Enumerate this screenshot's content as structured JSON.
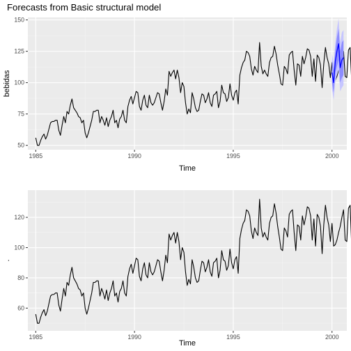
{
  "chart_data": [
    {
      "type": "line",
      "title": "Forecasts from Basic structural model",
      "xlabel": "Time",
      "ylabel": "bebidas",
      "xlim": [
        1984.6,
        2000.75
      ],
      "ylim": [
        46.5,
        152
      ],
      "x_ticks": [
        1985,
        1990,
        1995,
        2000
      ],
      "x_tick_labels": [
        "1985",
        "1990",
        "1995",
        "2000"
      ],
      "y_ticks": [
        50,
        75,
        100,
        125,
        150
      ],
      "y_tick_labels": [
        "50",
        "75",
        "100",
        "125",
        "150"
      ],
      "grid": true,
      "series": [
        {
          "x_start": 1985.0,
          "frequency": 12,
          "values": [
            56,
            50,
            50,
            54,
            57,
            59,
            55,
            58,
            63,
            68,
            69,
            69,
            70,
            70,
            62,
            58,
            66,
            73,
            68,
            77,
            75,
            82,
            87,
            80,
            78,
            76,
            73,
            72,
            68,
            70,
            60,
            56,
            60,
            65,
            70,
            77,
            77,
            78,
            78,
            68,
            73,
            70,
            66,
            72,
            65,
            70,
            73,
            78,
            68,
            70,
            64,
            71,
            73,
            78,
            70,
            68,
            81,
            86,
            89,
            83,
            88,
            93,
            92,
            81,
            78,
            86,
            90,
            82,
            80,
            90,
            84,
            82,
            84,
            88,
            92,
            91,
            84,
            78,
            85,
            95,
            90,
            109,
            105,
            108,
            110,
            103,
            110,
            104,
            92,
            100,
            97,
            84,
            75,
            79,
            76,
            92,
            87,
            80,
            77,
            78,
            85,
            91,
            90,
            84,
            87,
            92,
            84,
            81,
            90,
            91,
            93,
            80,
            85,
            98,
            92,
            91,
            85,
            88,
            99,
            90,
            86,
            92,
            94,
            83,
            106,
            112,
            116,
            118,
            125,
            124,
            121,
            111,
            106,
            113,
            110,
            108,
            132,
            113,
            107,
            110,
            107,
            105,
            116,
            120,
            121,
            129,
            123,
            114,
            107,
            99,
            98,
            113,
            111,
            107,
            122,
            124,
            125,
            110,
            98,
            115,
            114,
            105,
            121,
            115,
            120,
            127,
            126,
            121,
            105,
            119,
            101,
            122,
            120,
            114,
            96,
            115,
            128,
            120,
            115,
            104,
            116,
            101,
            102,
            105,
            110,
            114,
            120,
            125,
            105,
            104,
            126,
            128,
            99,
            98,
            94,
            125,
            124,
            98,
            89,
            103,
            129,
            120,
            100,
            98,
            97,
            99,
            106,
            113,
            117,
            125,
            132
          ]
        },
        {
          "name": "forecast",
          "x": [
            2000.0,
            2000.083,
            2000.167,
            2000.25,
            2000.333,
            2000.417,
            2000.5,
            2000.583
          ],
          "values": [
            108,
            100,
            117,
            125,
            131,
            112,
            118,
            120
          ],
          "lower80": [
            100,
            92,
            108,
            113,
            118,
            100,
            104,
            106
          ],
          "upper80": [
            118,
            110,
            126,
            136,
            143,
            125,
            132,
            134
          ],
          "lower95": [
            95,
            86,
            101,
            106,
            110,
            93,
            96,
            98
          ],
          "upper95": [
            123,
            115,
            132,
            143,
            151,
            132,
            140,
            142
          ],
          "line_color": "#0000ff",
          "band80_color": "#8c8cff",
          "band95_color": "#c6c6ff"
        }
      ]
    },
    {
      "type": "line",
      "title": "",
      "xlabel": "Time",
      "ylabel": ".",
      "xlim": [
        1984.6,
        2000.75
      ],
      "ylim": [
        45,
        138
      ],
      "x_ticks": [
        1985,
        1990,
        1995,
        2000
      ],
      "x_tick_labels": [
        "1985",
        "1990",
        "1995",
        "2000"
      ],
      "y_ticks": [
        60,
        80,
        100,
        120
      ],
      "y_tick_labels": [
        "60",
        "80",
        "100",
        "120"
      ],
      "grid": true,
      "series": [
        {
          "x_start": 1985.0,
          "frequency": 12,
          "values": [
            56,
            50,
            50,
            54,
            57,
            59,
            55,
            58,
            63,
            68,
            69,
            69,
            70,
            70,
            62,
            58,
            66,
            73,
            68,
            77,
            75,
            82,
            87,
            80,
            78,
            76,
            73,
            72,
            68,
            70,
            60,
            56,
            60,
            65,
            70,
            77,
            77,
            78,
            78,
            68,
            73,
            70,
            66,
            72,
            65,
            70,
            73,
            78,
            68,
            70,
            64,
            71,
            73,
            78,
            70,
            68,
            81,
            86,
            89,
            83,
            88,
            93,
            92,
            81,
            78,
            86,
            90,
            82,
            80,
            90,
            84,
            82,
            84,
            88,
            92,
            91,
            84,
            78,
            85,
            95,
            90,
            109,
            105,
            108,
            110,
            103,
            110,
            104,
            92,
            100,
            97,
            84,
            75,
            79,
            76,
            92,
            87,
            80,
            77,
            78,
            85,
            91,
            90,
            84,
            87,
            92,
            84,
            81,
            90,
            91,
            93,
            80,
            85,
            98,
            92,
            91,
            85,
            88,
            99,
            90,
            86,
            92,
            94,
            83,
            106,
            112,
            116,
            118,
            125,
            124,
            121,
            111,
            106,
            113,
            110,
            108,
            132,
            113,
            107,
            110,
            107,
            105,
            116,
            120,
            121,
            129,
            123,
            114,
            107,
            99,
            98,
            113,
            111,
            107,
            122,
            124,
            125,
            110,
            98,
            115,
            114,
            105,
            121,
            115,
            120,
            127,
            126,
            121,
            105,
            119,
            101,
            122,
            120,
            114,
            96,
            115,
            128,
            120,
            115,
            104,
            116,
            101,
            102,
            105,
            110,
            114,
            120,
            125,
            105,
            104,
            126,
            128,
            99,
            98,
            94,
            125,
            124,
            98,
            89,
            103,
            129,
            120,
            100,
            98,
            97,
            99,
            106,
            113,
            117,
            125,
            132,
            96,
            94,
            135,
            118,
            116,
            99,
            101
          ]
        }
      ]
    }
  ]
}
